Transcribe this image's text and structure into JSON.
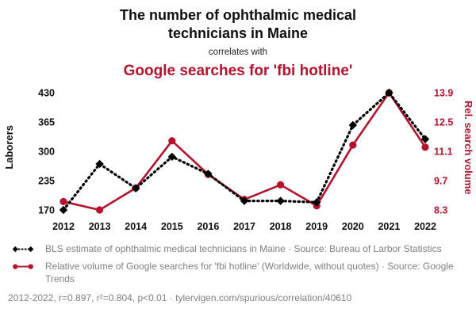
{
  "header": {
    "title": "The number of ophthalmic medical technicians in Maine",
    "connector": "correlates with",
    "subtitle": "Google searches for 'fbi hotline'"
  },
  "chart_data": {
    "type": "line",
    "x": [
      2012,
      2013,
      2014,
      2015,
      2016,
      2017,
      2018,
      2019,
      2020,
      2021,
      2022
    ],
    "x_ticks": [
      "2012",
      "2013",
      "2014",
      "2015",
      "2016",
      "2017",
      "2018",
      "2019",
      "2020",
      "2021",
      "2022"
    ],
    "series": [
      {
        "name": "BLS estimate of ophthalmic medical technicians in Maine",
        "axis": "left",
        "color": "#000000",
        "style": "dotted",
        "marker": "diamond",
        "values": [
          170,
          272,
          218,
          288,
          250,
          190,
          190,
          187,
          358,
          430,
          327
        ]
      },
      {
        "name": "Relative volume of Google searches for 'fbi hotline'",
        "axis": "right",
        "color": "#b5122e",
        "style": "solid",
        "marker": "circle",
        "values": [
          8.7,
          8.3,
          9.35,
          11.6,
          10.0,
          8.8,
          9.5,
          8.5,
          11.4,
          13.9,
          11.3
        ]
      }
    ],
    "left_axis": {
      "label": "Laborers",
      "ticks": [
        430,
        365,
        300,
        235,
        170
      ],
      "ylim": [
        170,
        430
      ]
    },
    "right_axis": {
      "label": "Rel. search volume",
      "ticks": [
        13.9,
        12.5,
        11.1,
        9.7,
        8.3
      ],
      "ylim": [
        8.3,
        13.9
      ]
    },
    "grid": false,
    "legend_position": "below"
  },
  "legend": {
    "series1": "BLS estimate of ophthalmic medical technicians in Maine · Source: Bureau of Larbor Statistics",
    "series2": "Relative volume of Google searches for 'fbi hotline' (Worldwide, without quotes) · Source: Google Trends"
  },
  "footer": {
    "stats": "2012-2022, r=0.897, r²=0.804, p<0.01 · tylervigen.com/spurious/correlation/40610"
  },
  "colors": {
    "accent": "#b5122e",
    "series_black": "#000000",
    "text_muted": "#808080"
  }
}
